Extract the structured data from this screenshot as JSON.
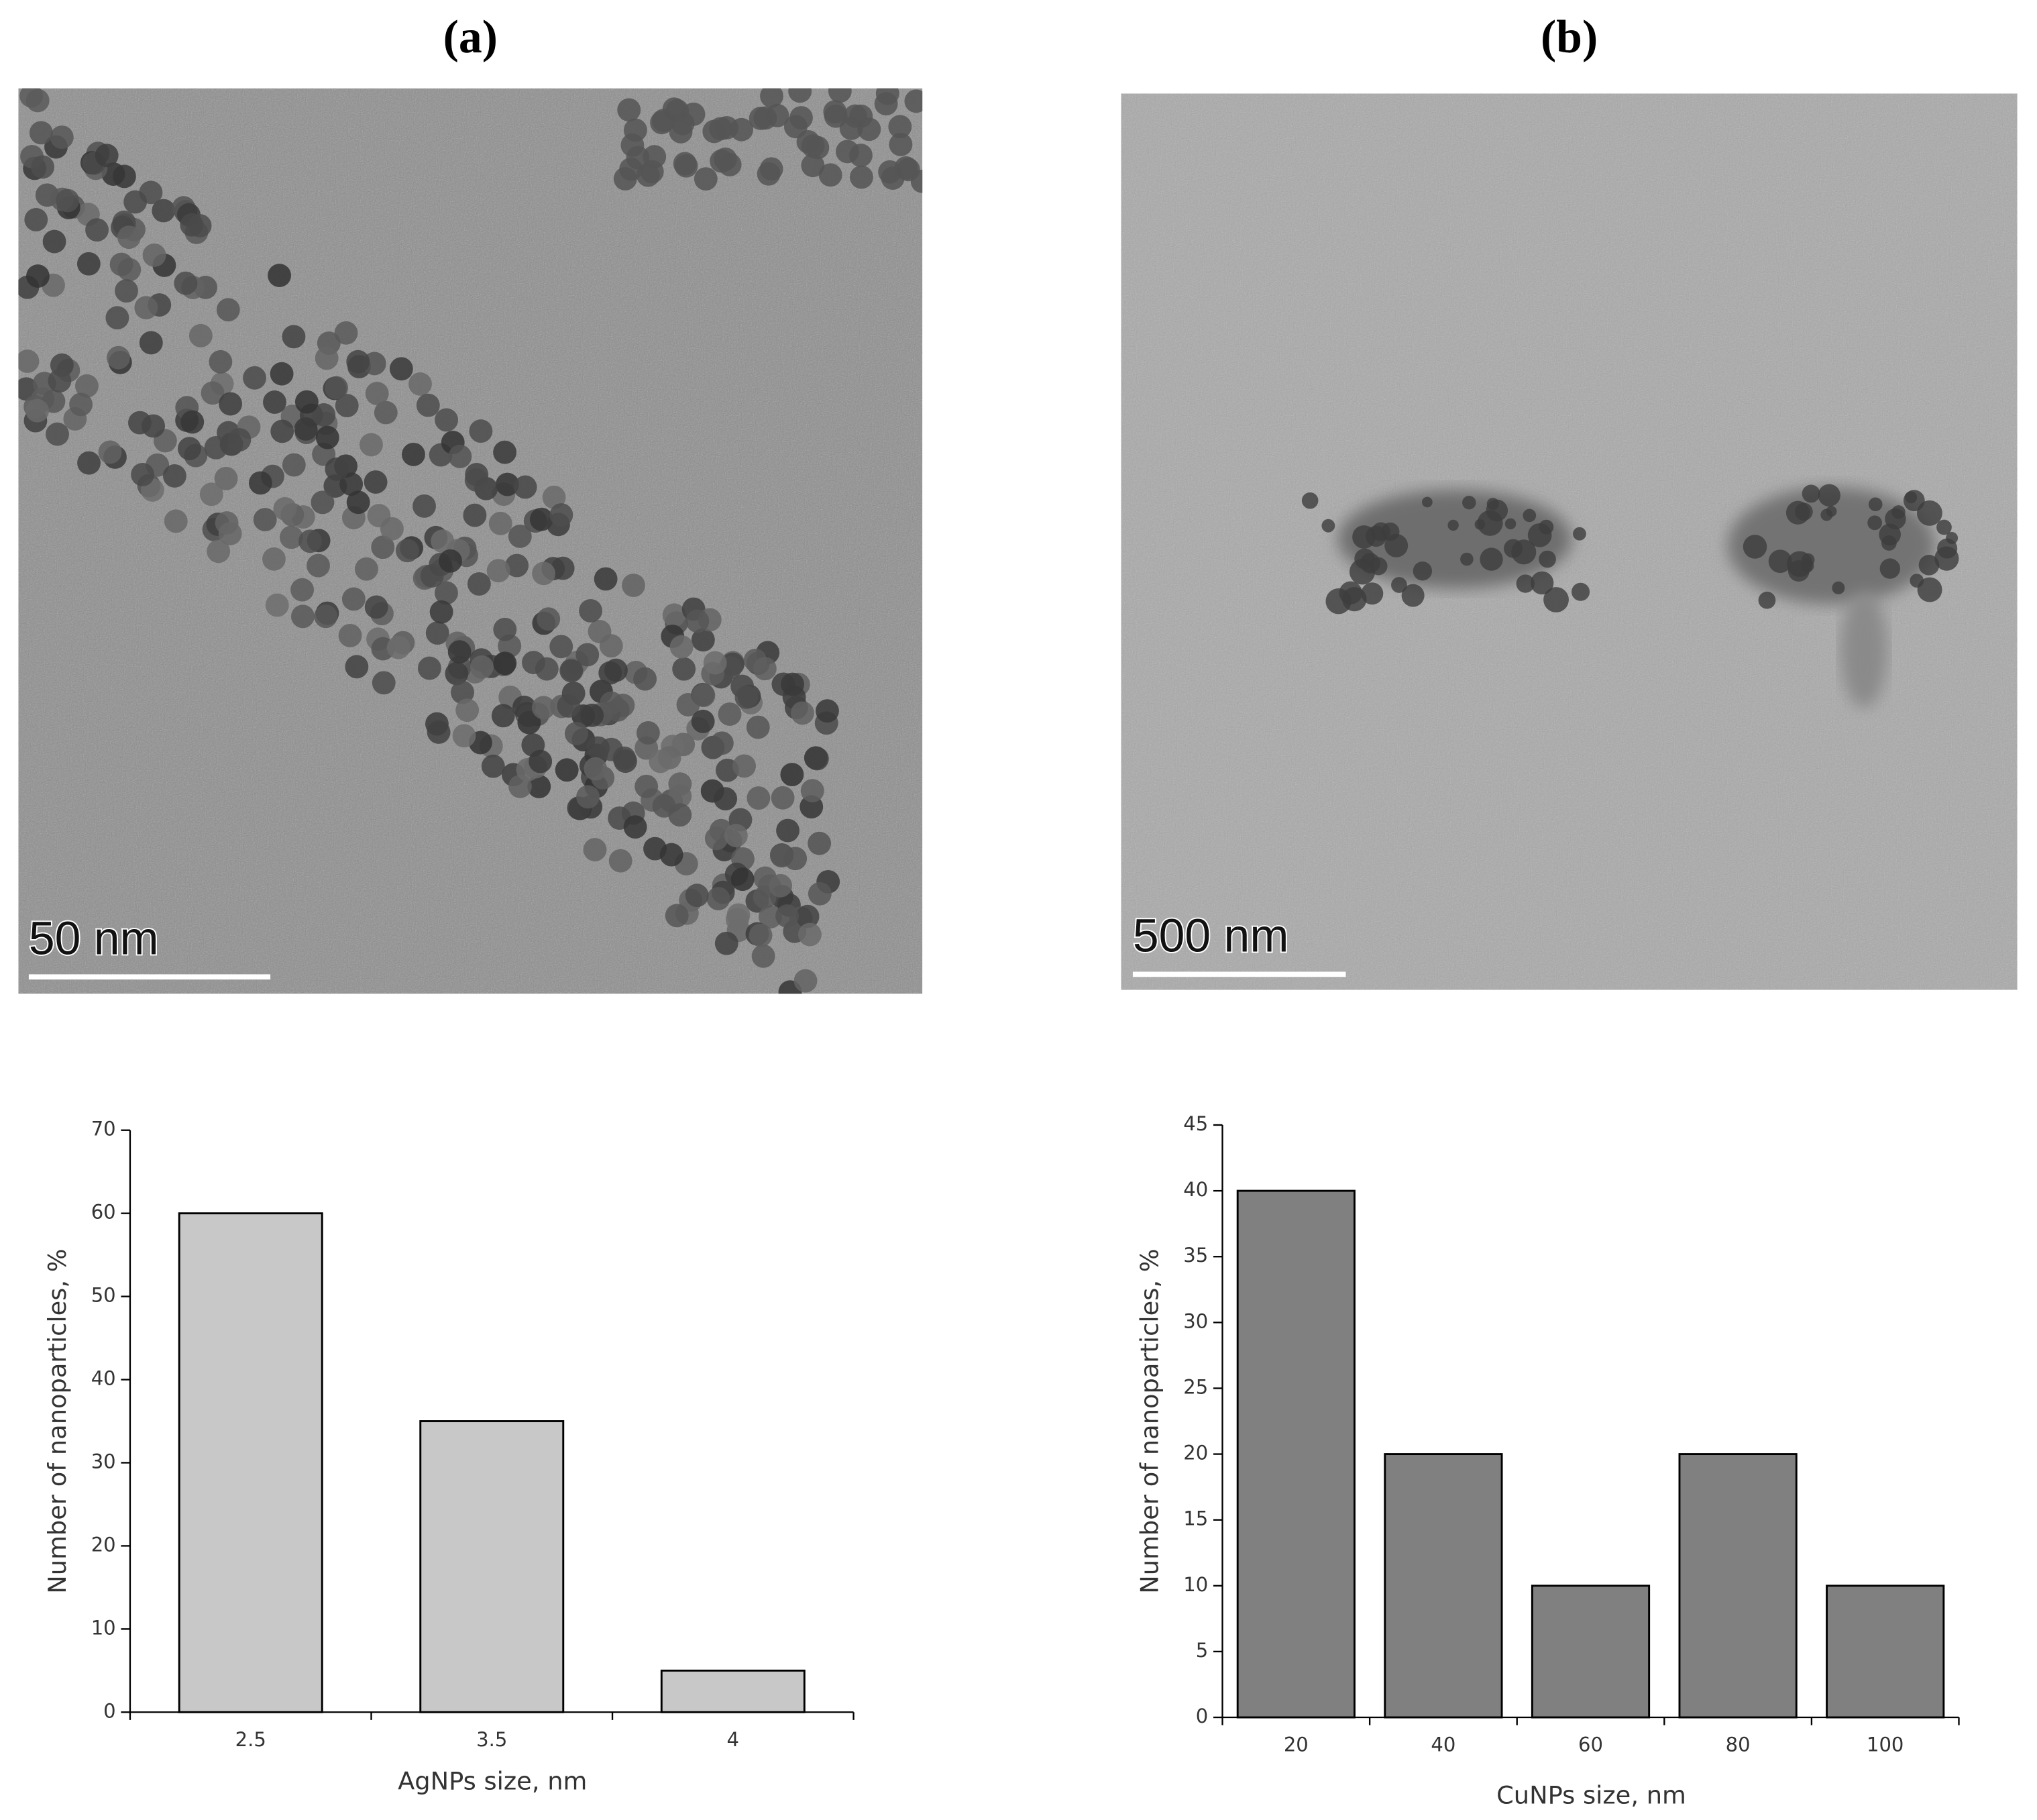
{
  "panels": [
    {
      "label": "(a)",
      "scale_bar": "50 nm"
    },
    {
      "label": "(b)",
      "scale_bar": "500 nm"
    }
  ],
  "chart_data": [
    {
      "type": "bar",
      "x_label": "AgNPs size, nm",
      "y_label": "Number of nanoparticles, %",
      "categories": [
        "2.5",
        "3.5",
        "4"
      ],
      "values": [
        60,
        35,
        5
      ],
      "color": "#c8c8c8",
      "ylim": [
        0,
        70
      ],
      "yticks": [
        0,
        10,
        20,
        30,
        40,
        50,
        60,
        70
      ]
    },
    {
      "type": "bar",
      "x_label": "CuNPs size, nm",
      "y_label": "Number of nanoparticles, %",
      "categories": [
        "20",
        "40",
        "60",
        "80",
        "100"
      ],
      "values": [
        40,
        20,
        10,
        20,
        10
      ],
      "color": "#808080",
      "ylim": [
        0,
        45
      ],
      "yticks": [
        0,
        5,
        10,
        15,
        20,
        25,
        30,
        35,
        40,
        45
      ]
    }
  ]
}
